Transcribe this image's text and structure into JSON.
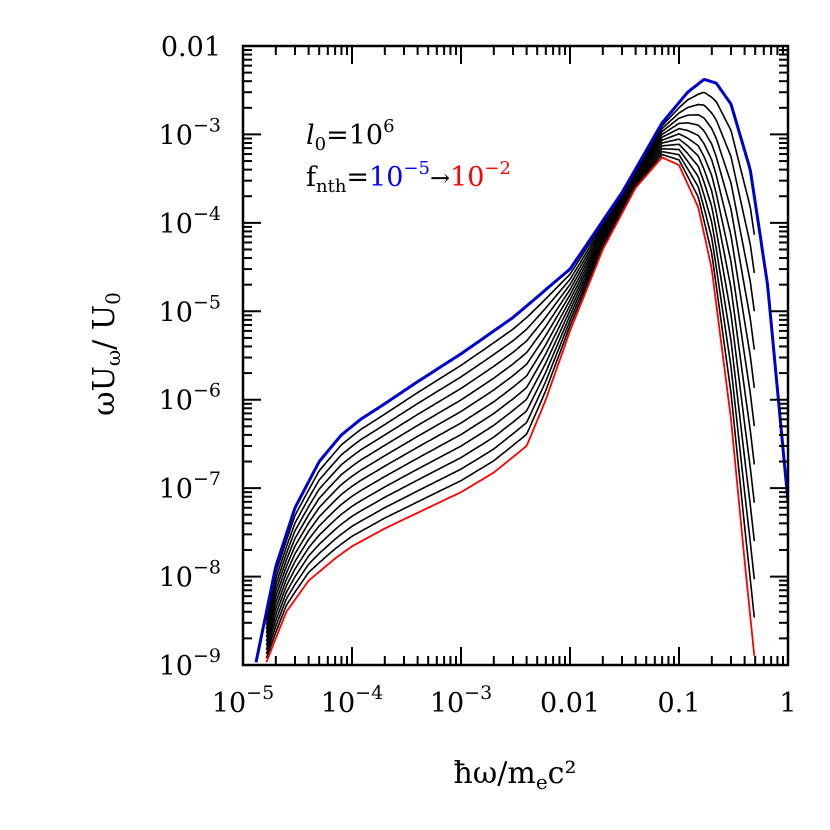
{
  "chart_data": {
    "type": "line",
    "title": "",
    "xlabel": {
      "main": "ħω/m",
      "sub": "e",
      "tail": "c²"
    },
    "ylabel": {
      "a": "ωU",
      "a_sub": "ω",
      "b": "/ U",
      "b_sub": "0"
    },
    "x_scale": "log",
    "y_scale": "log",
    "xlim": [
      1e-05,
      1
    ],
    "ylim": [
      1e-09,
      0.01
    ],
    "x_ticks": [
      {
        "value": 1e-05,
        "base": "10",
        "exp": "−5"
      },
      {
        "value": 0.0001,
        "base": "10",
        "exp": "−4"
      },
      {
        "value": 0.001,
        "base": "10",
        "exp": "−3"
      },
      {
        "value": 0.01,
        "base": "0.01",
        "exp": ""
      },
      {
        "value": 0.1,
        "base": "0.1",
        "exp": ""
      },
      {
        "value": 1,
        "base": "1",
        "exp": ""
      }
    ],
    "y_ticks": [
      {
        "value": 1e-09,
        "base": "10",
        "exp": "−9"
      },
      {
        "value": 1e-08,
        "base": "10",
        "exp": "−8"
      },
      {
        "value": 1e-07,
        "base": "10",
        "exp": "−7"
      },
      {
        "value": 1e-06,
        "base": "10",
        "exp": "−6"
      },
      {
        "value": 1e-05,
        "base": "10",
        "exp": "−5"
      },
      {
        "value": 0.0001,
        "base": "10",
        "exp": "−4"
      },
      {
        "value": 0.001,
        "base": "10",
        "exp": "−3"
      },
      {
        "value": 0.01,
        "base": "0.01",
        "exp": ""
      }
    ],
    "annotation": {
      "l_symbol": "l",
      "l_sub": "0",
      "l_eq": "=10",
      "l_exp": "6",
      "f_symbol": "f",
      "f_sub": "nth",
      "f_eq": "=",
      "f_from_base": "10",
      "f_from_exp": "−5",
      "arrow": "→",
      "f_to_base": "10",
      "f_to_exp": "−2",
      "color_from": "#0000ff",
      "color_to": "#ff0000"
    },
    "series_count": 13,
    "first_series_color": "#0000cc",
    "last_series_color": "#ff0000",
    "middle_series_color": "#000000",
    "envelope_first": {
      "x": [
        1.3e-05,
        2e-05,
        3e-05,
        5e-05,
        8e-05,
        0.00012,
        0.0002,
        0.0004,
        0.001,
        0.003,
        0.01,
        0.03,
        0.07,
        0.12,
        0.17,
        0.22,
        0.3,
        0.45,
        0.65,
        1.0
      ],
      "y": [
        1e-09,
        1.3e-08,
        6e-08,
        2e-07,
        4e-07,
        6e-07,
        9e-07,
        1.6e-06,
        3.3e-06,
        8.5e-06,
        3e-05,
        0.00022,
        0.00135,
        0.003,
        0.0042,
        0.0038,
        0.0022,
        0.0004,
        2e-05,
        7e-08
      ]
    },
    "envelope_last": {
      "x": [
        1.6e-05,
        2.5e-05,
        4e-05,
        7e-05,
        0.0001,
        0.0002,
        0.0005,
        0.001,
        0.002,
        0.004,
        0.006,
        0.01,
        0.02,
        0.04,
        0.07,
        0.1,
        0.15,
        0.2,
        0.3,
        0.4,
        0.5
      ],
      "y": [
        1e-09,
        4e-09,
        9e-09,
        1.6e-08,
        2.2e-08,
        3.5e-08,
        6e-08,
        9e-08,
        1.5e-07,
        3e-07,
        1e-06,
        6e-06,
        5e-05,
        0.00025,
        0.00055,
        0.00045,
        0.00015,
        3e-05,
        6e-07,
        1.5e-08,
        1e-09
      ]
    }
  }
}
